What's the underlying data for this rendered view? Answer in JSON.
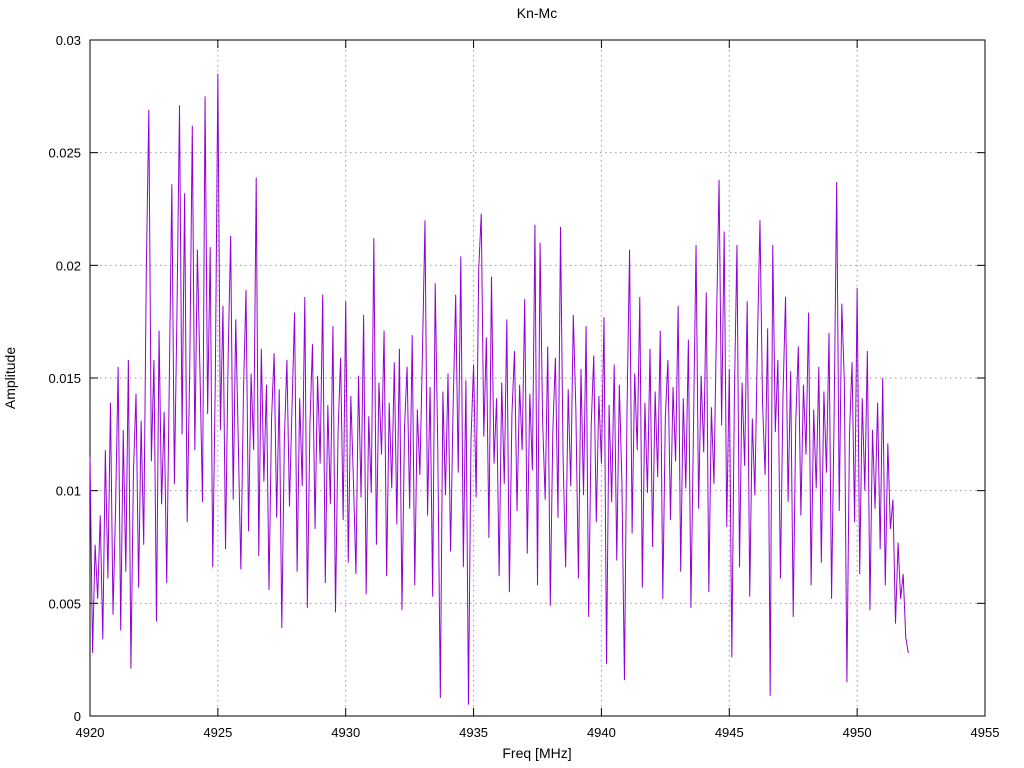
{
  "page": {
    "background": "#ffffff"
  },
  "chart_data": {
    "type": "line",
    "title": "Kn-Mc",
    "xlabel": "Freq [MHz]",
    "ylabel": "Amplitude",
    "xlim": [
      4920,
      4955
    ],
    "ylim": [
      0,
      0.03
    ],
    "x_ticks": [
      4920,
      4925,
      4930,
      4935,
      4940,
      4945,
      4950,
      4955
    ],
    "x_tick_labels": [
      "4920",
      "4925",
      "4930",
      "4935",
      "4940",
      "4945",
      "4950",
      "4955"
    ],
    "y_ticks": [
      0,
      0.005,
      0.01,
      0.015,
      0.02,
      0.025,
      0.03
    ],
    "y_tick_labels": [
      "0",
      "0.005",
      "0.01",
      "0.015",
      "0.02",
      "0.025",
      "0.03"
    ],
    "grid": true,
    "legend": "none",
    "line_color": "#9400d3",
    "grid_color": "#9a9a9a",
    "border_color": "#000000",
    "series": [
      {
        "name": "Kn-Mc",
        "x_start": 4920.0,
        "x_step": 0.1,
        "values": [
          0.0115,
          0.0028,
          0.0076,
          0.0052,
          0.0089,
          0.0034,
          0.0118,
          0.0061,
          0.0139,
          0.0045,
          0.0092,
          0.0155,
          0.0038,
          0.0127,
          0.0064,
          0.0158,
          0.0021,
          0.0109,
          0.0143,
          0.0057,
          0.0131,
          0.0076,
          0.0196,
          0.0269,
          0.0113,
          0.0158,
          0.0042,
          0.0171,
          0.0094,
          0.0135,
          0.0059,
          0.0148,
          0.0236,
          0.0103,
          0.0178,
          0.0271,
          0.0125,
          0.0232,
          0.0086,
          0.0154,
          0.0262,
          0.0118,
          0.0207,
          0.0153,
          0.0095,
          0.0275,
          0.0134,
          0.0208,
          0.0066,
          0.0149,
          0.0285,
          0.0127,
          0.0182,
          0.0074,
          0.0158,
          0.0213,
          0.0096,
          0.0176,
          0.0121,
          0.0065,
          0.0143,
          0.0189,
          0.0082,
          0.0152,
          0.0118,
          0.0239,
          0.0071,
          0.0163,
          0.0104,
          0.0147,
          0.0056,
          0.0132,
          0.0161,
          0.0088,
          0.0145,
          0.0039,
          0.0122,
          0.0158,
          0.0093,
          0.0137,
          0.0179,
          0.0064,
          0.0141,
          0.0102,
          0.0186,
          0.0048,
          0.0129,
          0.0165,
          0.0083,
          0.0151,
          0.0112,
          0.0187,
          0.0059,
          0.0138,
          0.0094,
          0.0173,
          0.0046,
          0.0126,
          0.0159,
          0.0087,
          0.0184,
          0.0068,
          0.0142,
          0.0105,
          0.0063,
          0.0151,
          0.0097,
          0.0178,
          0.0054,
          0.0133,
          0.0099,
          0.0212,
          0.0076,
          0.0148,
          0.0116,
          0.0171,
          0.0062,
          0.0139,
          0.0101,
          0.0157,
          0.0085,
          0.0163,
          0.0047,
          0.0128,
          0.0155,
          0.0092,
          0.0169,
          0.0058,
          0.0136,
          0.0107,
          0.0161,
          0.022,
          0.0089,
          0.0146,
          0.0053,
          0.0192,
          0.0119,
          0.0008,
          0.0144,
          0.0098,
          0.0152,
          0.0073,
          0.0137,
          0.0187,
          0.0108,
          0.0204,
          0.0066,
          0.0149,
          0.0005,
          0.0123,
          0.0156,
          0.0097,
          0.0198,
          0.0223,
          0.0124,
          0.0168,
          0.0079,
          0.0195,
          0.0112,
          0.0141,
          0.0062,
          0.0148,
          0.0103,
          0.0176,
          0.0055,
          0.0134,
          0.0162,
          0.0091,
          0.0147,
          0.0118,
          0.0185,
          0.0072,
          0.0143,
          0.0109,
          0.0218,
          0.0058,
          0.021,
          0.0131,
          0.0096,
          0.0164,
          0.0049,
          0.0127,
          0.0159,
          0.0088,
          0.0217,
          0.0115,
          0.0066,
          0.0145,
          0.0102,
          0.0178,
          0.0136,
          0.0061,
          0.0154,
          0.0098,
          0.0173,
          0.0044,
          0.0129,
          0.016,
          0.0086,
          0.0142,
          0.0112,
          0.0177,
          0.0023,
          0.0138,
          0.0095,
          0.0156,
          0.0069,
          0.0147,
          0.0104,
          0.0016,
          0.0135,
          0.0207,
          0.0081,
          0.0152,
          0.0118,
          0.0186,
          0.0057,
          0.0139,
          0.0099,
          0.0163,
          0.0075,
          0.0144,
          0.0106,
          0.0171,
          0.0052,
          0.0133,
          0.0158,
          0.0087,
          0.0146,
          0.0113,
          0.0182,
          0.0064,
          0.0141,
          0.0101,
          0.0167,
          0.0048,
          0.0128,
          0.0209,
          0.0092,
          0.0151,
          0.0117,
          0.0188,
          0.0055,
          0.0137,
          0.0103,
          0.0174,
          0.0238,
          0.0129,
          0.0215,
          0.0084,
          0.0154,
          0.0026,
          0.0143,
          0.0209,
          0.0066,
          0.0148,
          0.0111,
          0.0184,
          0.0053,
          0.0132,
          0.0098,
          0.0165,
          0.022,
          0.0139,
          0.0107,
          0.0172,
          0.0009,
          0.0209,
          0.0126,
          0.0158,
          0.0061,
          0.0142,
          0.0186,
          0.0095,
          0.0153,
          0.0044,
          0.0131,
          0.0164,
          0.0089,
          0.0147,
          0.0116,
          0.0179,
          0.0058,
          0.0136,
          0.0101,
          0.0155,
          0.0068,
          0.0144,
          0.0108,
          0.017,
          0.0052,
          0.0134,
          0.0237,
          0.0091,
          0.0183,
          0.0148,
          0.0015,
          0.0125,
          0.0157,
          0.0086,
          0.019,
          0.0063,
          0.0141,
          0.01,
          0.0162,
          0.0047,
          0.0127,
          0.0092,
          0.0139,
          0.0074,
          0.015,
          0.0058,
          0.0121,
          0.0083,
          0.0096,
          0.0041,
          0.0077,
          0.0052,
          0.0063,
          0.0035,
          0.0028
        ]
      }
    ]
  }
}
